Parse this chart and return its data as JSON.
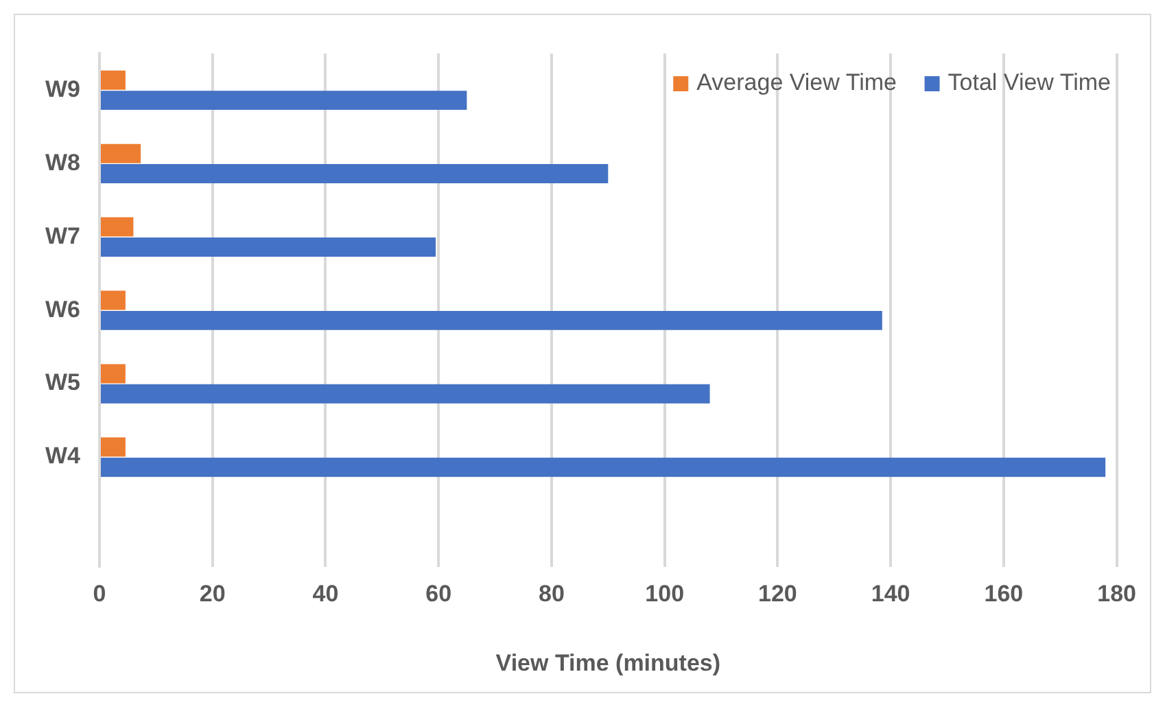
{
  "chart_data": {
    "type": "bar",
    "orientation": "horizontal",
    "xlabel": "View Time (minutes)",
    "categories": [
      "W9",
      "W8",
      "W7",
      "W6",
      "W5",
      "W4",
      null
    ],
    "series": [
      {
        "name": "Average View Time",
        "color": "#ed7d31",
        "values": [
          4.6,
          7.3,
          6.0,
          4.6,
          4.6,
          4.6,
          null
        ]
      },
      {
        "name": "Total View Time",
        "color": "#4472c4",
        "values": [
          65,
          90,
          59.5,
          138.5,
          108,
          178,
          null
        ]
      }
    ],
    "xlim": [
      0,
      180
    ],
    "xticks": [
      0,
      20,
      40,
      60,
      80,
      100,
      120,
      140,
      160,
      180
    ],
    "grid": "x",
    "legend": "top right"
  }
}
